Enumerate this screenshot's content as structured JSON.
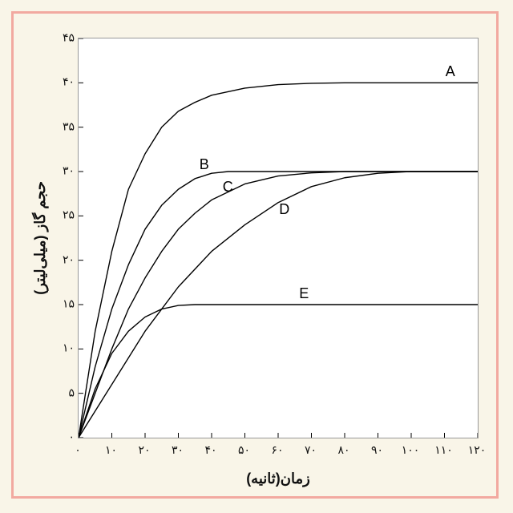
{
  "chart": {
    "type": "line",
    "background_color": "#ffffff",
    "page_background": "#f9f5e8",
    "border_color": "#f2a9a0",
    "axis_color": "#000000",
    "tick_fontsize": 14,
    "title_fontsize": 18,
    "line_color": "#000000",
    "line_width": 1.4,
    "xlim": [
      0,
      120
    ],
    "ylim": [
      0,
      45
    ],
    "xlabel": "زمان(ثانیه)",
    "ylabel": "حجم گاز (میلی‌لیتر)",
    "xticks": [
      0,
      10,
      20,
      30,
      40,
      50,
      60,
      70,
      80,
      90,
      100,
      110,
      120
    ],
    "xtick_labels": [
      "۰",
      "۱۰",
      "۲۰",
      "۳۰",
      "۴۰",
      "۵۰",
      "۶۰",
      "۷۰",
      "۸۰",
      "۹۰",
      "۱۰۰",
      "۱۱۰",
      "۱۲۰"
    ],
    "yticks": [
      0,
      5,
      10,
      15,
      20,
      25,
      30,
      35,
      40,
      45
    ],
    "ytick_labels": [
      "۰",
      "۵",
      "۱۰",
      "۱۵",
      "۲۰",
      "۲۵",
      "۳۰",
      "۳۵",
      "۴۰",
      "۴۵"
    ],
    "tick_len": 6,
    "series": [
      {
        "label": "A",
        "label_xy": [
          112,
          41
        ],
        "points": [
          [
            0,
            0
          ],
          [
            5,
            12
          ],
          [
            10,
            21
          ],
          [
            15,
            28
          ],
          [
            20,
            32
          ],
          [
            25,
            35
          ],
          [
            30,
            36.8
          ],
          [
            35,
            37.8
          ],
          [
            40,
            38.6
          ],
          [
            50,
            39.4
          ],
          [
            60,
            39.8
          ],
          [
            70,
            39.95
          ],
          [
            80,
            40
          ],
          [
            120,
            40
          ]
        ]
      },
      {
        "label": "B",
        "label_xy": [
          38,
          30.5
        ],
        "points": [
          [
            0,
            0
          ],
          [
            5,
            8
          ],
          [
            10,
            14.5
          ],
          [
            15,
            19.5
          ],
          [
            20,
            23.5
          ],
          [
            25,
            26.2
          ],
          [
            30,
            28
          ],
          [
            35,
            29.2
          ],
          [
            40,
            29.8
          ],
          [
            45,
            30
          ],
          [
            120,
            30
          ]
        ]
      },
      {
        "label": "C",
        "label_xy": [
          45,
          28
        ],
        "points": [
          [
            0,
            0
          ],
          [
            5,
            5
          ],
          [
            10,
            10
          ],
          [
            15,
            14.5
          ],
          [
            20,
            18
          ],
          [
            25,
            21
          ],
          [
            30,
            23.5
          ],
          [
            35,
            25.3
          ],
          [
            40,
            26.8
          ],
          [
            50,
            28.6
          ],
          [
            60,
            29.5
          ],
          [
            70,
            29.85
          ],
          [
            80,
            30
          ],
          [
            120,
            30
          ]
        ]
      },
      {
        "label": "D",
        "label_xy": [
          62,
          25.5
        ],
        "points": [
          [
            0,
            0
          ],
          [
            10,
            6
          ],
          [
            20,
            12
          ],
          [
            30,
            17
          ],
          [
            40,
            21
          ],
          [
            50,
            24
          ],
          [
            60,
            26.5
          ],
          [
            70,
            28.3
          ],
          [
            80,
            29.3
          ],
          [
            90,
            29.8
          ],
          [
            100,
            30
          ],
          [
            120,
            30
          ]
        ]
      },
      {
        "label": "E",
        "label_xy": [
          68,
          16
        ],
        "points": [
          [
            0,
            0
          ],
          [
            5,
            5.5
          ],
          [
            10,
            9.5
          ],
          [
            15,
            12
          ],
          [
            20,
            13.6
          ],
          [
            25,
            14.5
          ],
          [
            30,
            14.9
          ],
          [
            35,
            15
          ],
          [
            120,
            15
          ]
        ]
      }
    ]
  }
}
